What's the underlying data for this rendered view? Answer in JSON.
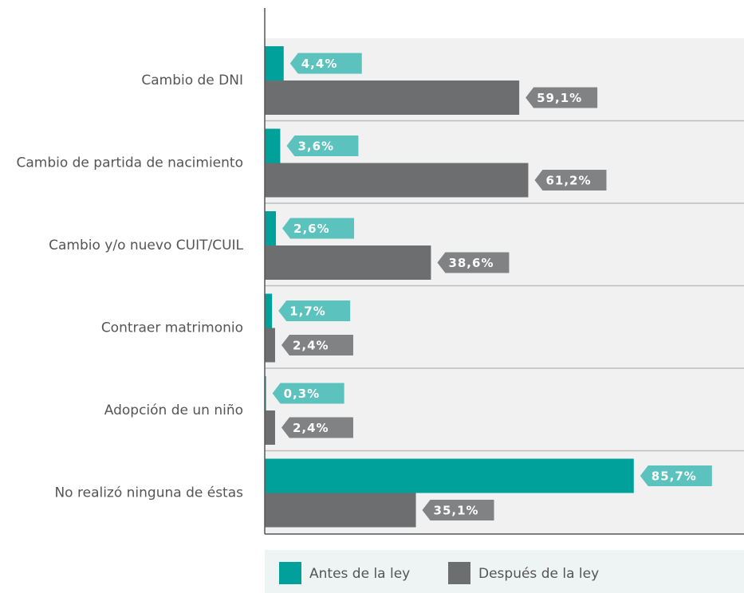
{
  "chart_data": {
    "type": "bar",
    "orientation": "horizontal",
    "categories": [
      "Cambio de DNI",
      "Cambio de partida de nacimiento",
      "Cambio y/o nuevo CUIT/CUIL",
      "Contraer matrimonio",
      "Adopción de un niño",
      "No realizó ninguna de éstas"
    ],
    "series": [
      {
        "name": "Antes de la ley",
        "color": "#00a19a",
        "label_color": "#5cc2bd",
        "values": [
          4.4,
          3.6,
          2.6,
          1.7,
          0.3,
          85.7
        ],
        "value_labels": [
          "4,4%",
          "3,6%",
          "2,6%",
          "1,7%",
          "0,3%",
          "85,7%"
        ]
      },
      {
        "name": "Después de la ley",
        "color": "#6d6e70",
        "label_color": "#818284",
        "values": [
          59.1,
          61.2,
          38.6,
          2.4,
          2.4,
          35.1
        ],
        "value_labels": [
          "59,1%",
          "61,2%",
          "38,6%",
          "2,4%",
          "2,4%",
          "35,1%"
        ]
      }
    ],
    "xlim": [
      0,
      100
    ],
    "legend": "bottom"
  }
}
